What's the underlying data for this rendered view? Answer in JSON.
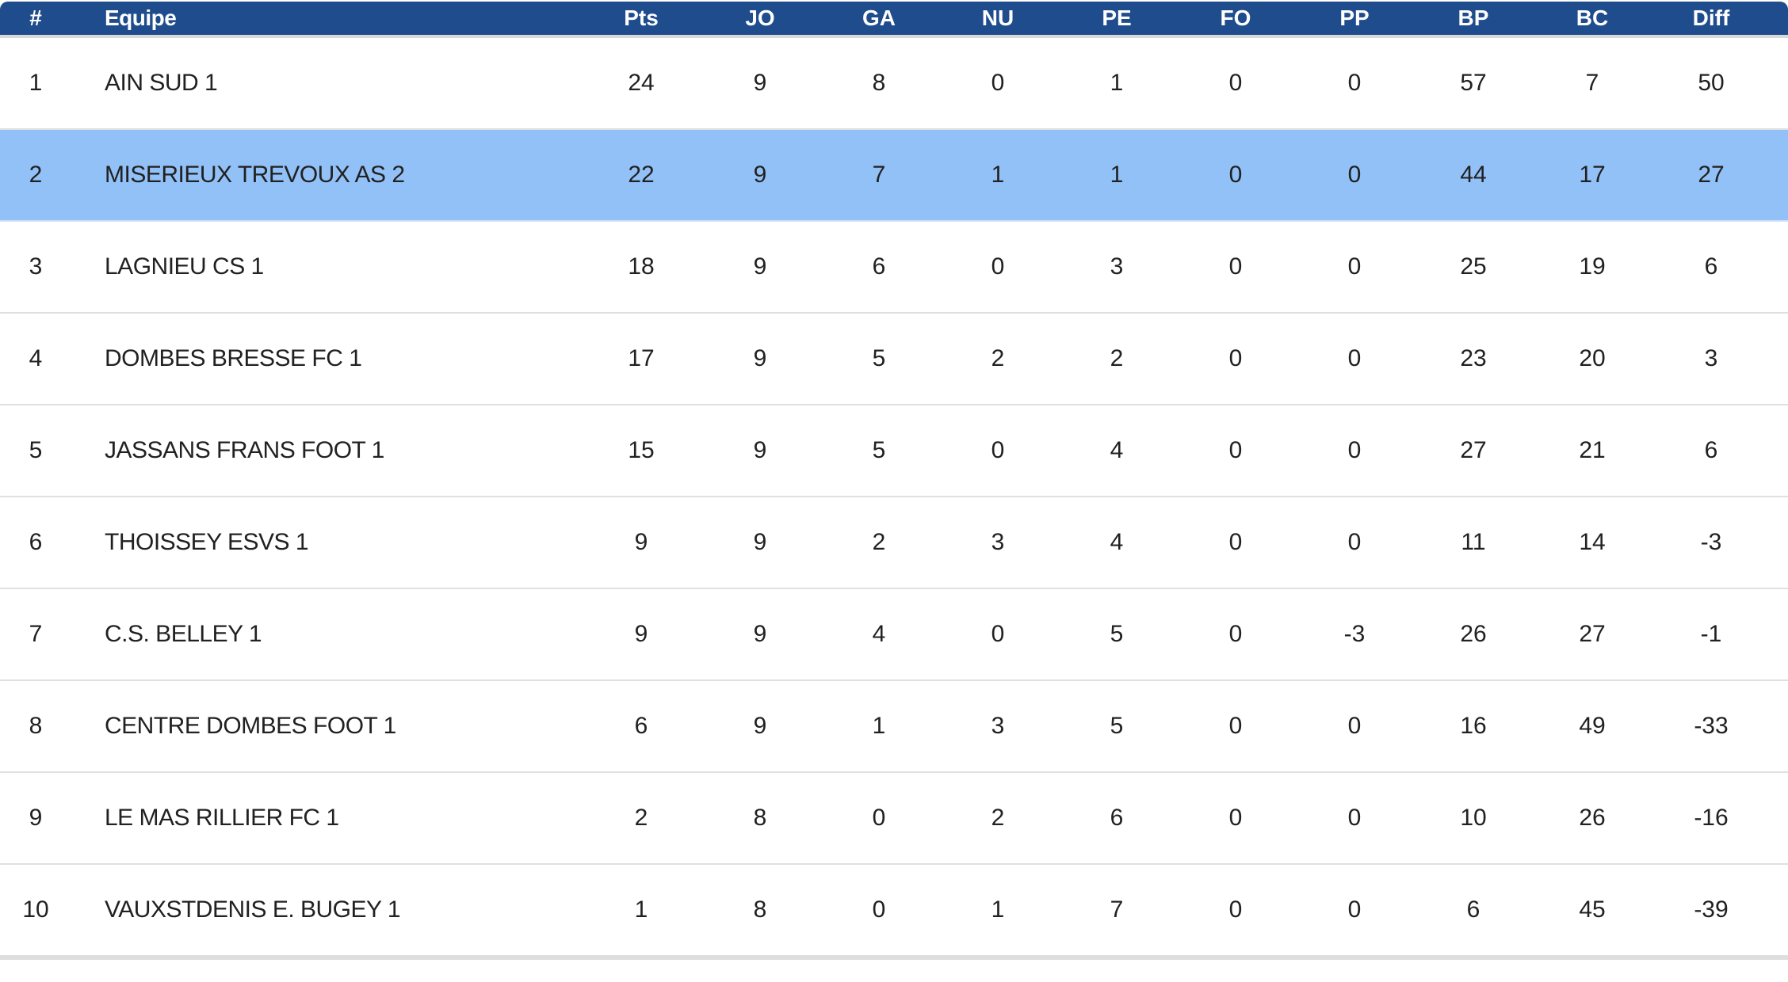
{
  "table": {
    "columns": [
      {
        "key": "rank",
        "label": "#"
      },
      {
        "key": "equipe",
        "label": "Equipe"
      },
      {
        "key": "pts",
        "label": "Pts"
      },
      {
        "key": "jo",
        "label": "JO"
      },
      {
        "key": "ga",
        "label": "GA"
      },
      {
        "key": "nu",
        "label": "NU"
      },
      {
        "key": "pe",
        "label": "PE"
      },
      {
        "key": "fo",
        "label": "FO"
      },
      {
        "key": "pp",
        "label": "PP"
      },
      {
        "key": "bp",
        "label": "BP"
      },
      {
        "key": "bc",
        "label": "BC"
      },
      {
        "key": "diff",
        "label": "Diff"
      }
    ],
    "rows": [
      {
        "rank": "1",
        "equipe": "AIN SUD 1",
        "pts": "24",
        "jo": "9",
        "ga": "8",
        "nu": "0",
        "pe": "1",
        "fo": "0",
        "pp": "0",
        "bp": "57",
        "bc": "7",
        "diff": "50",
        "highlighted": false
      },
      {
        "rank": "2",
        "equipe": "MISERIEUX TREVOUX AS 2",
        "pts": "22",
        "jo": "9",
        "ga": "7",
        "nu": "1",
        "pe": "1",
        "fo": "0",
        "pp": "0",
        "bp": "44",
        "bc": "17",
        "diff": "27",
        "highlighted": true
      },
      {
        "rank": "3",
        "equipe": "LAGNIEU CS 1",
        "pts": "18",
        "jo": "9",
        "ga": "6",
        "nu": "0",
        "pe": "3",
        "fo": "0",
        "pp": "0",
        "bp": "25",
        "bc": "19",
        "diff": "6",
        "highlighted": false
      },
      {
        "rank": "4",
        "equipe": "DOMBES BRESSE FC 1",
        "pts": "17",
        "jo": "9",
        "ga": "5",
        "nu": "2",
        "pe": "2",
        "fo": "0",
        "pp": "0",
        "bp": "23",
        "bc": "20",
        "diff": "3",
        "highlighted": false
      },
      {
        "rank": "5",
        "equipe": "JASSANS FRANS FOOT 1",
        "pts": "15",
        "jo": "9",
        "ga": "5",
        "nu": "0",
        "pe": "4",
        "fo": "0",
        "pp": "0",
        "bp": "27",
        "bc": "21",
        "diff": "6",
        "highlighted": false
      },
      {
        "rank": "6",
        "equipe": "THOISSEY ESVS 1",
        "pts": "9",
        "jo": "9",
        "ga": "2",
        "nu": "3",
        "pe": "4",
        "fo": "0",
        "pp": "0",
        "bp": "11",
        "bc": "14",
        "diff": "-3",
        "highlighted": false
      },
      {
        "rank": "7",
        "equipe": "C.S. BELLEY 1",
        "pts": "9",
        "jo": "9",
        "ga": "4",
        "nu": "0",
        "pe": "5",
        "fo": "0",
        "pp": "-3",
        "bp": "26",
        "bc": "27",
        "diff": "-1",
        "highlighted": false
      },
      {
        "rank": "8",
        "equipe": "CENTRE DOMBES FOOT 1",
        "pts": "6",
        "jo": "9",
        "ga": "1",
        "nu": "3",
        "pe": "5",
        "fo": "0",
        "pp": "0",
        "bp": "16",
        "bc": "49",
        "diff": "-33",
        "highlighted": false
      },
      {
        "rank": "9",
        "equipe": "LE MAS RILLIER FC 1",
        "pts": "2",
        "jo": "8",
        "ga": "0",
        "nu": "2",
        "pe": "6",
        "fo": "0",
        "pp": "0",
        "bp": "10",
        "bc": "26",
        "diff": "-16",
        "highlighted": false
      },
      {
        "rank": "10",
        "equipe": "VAUXSTDENIS E. BUGEY 1",
        "pts": "1",
        "jo": "8",
        "ga": "0",
        "nu": "1",
        "pe": "7",
        "fo": "0",
        "pp": "0",
        "bp": "6",
        "bc": "45",
        "diff": "-39",
        "highlighted": false
      }
    ]
  },
  "colors": {
    "header_bg": "#1f4c8c",
    "header_text": "#ffffff",
    "highlight_row_bg": "#92c1f8",
    "row_text": "#212121",
    "row_border": "#e0e0e0"
  }
}
